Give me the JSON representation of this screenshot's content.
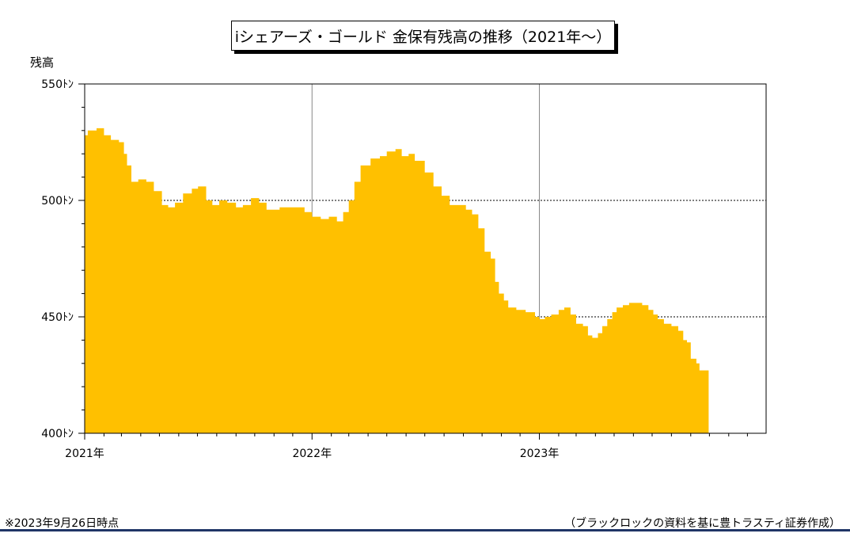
{
  "chart_data": {
    "type": "area",
    "title": "iシェアーズ・ゴールド 金保有残高の推移（2021年～）",
    "ylabel": "残高",
    "ylim": [
      400,
      550
    ],
    "yticks": [
      {
        "value": 550,
        "label": "550ﾄﾝ"
      },
      {
        "value": 500,
        "label": "500ﾄﾝ"
      },
      {
        "value": 450,
        "label": "450ﾄﾝ"
      },
      {
        "value": 400,
        "label": "400ﾄﾝ"
      }
    ],
    "xlim": [
      "2021-01-01",
      "2023-12-31"
    ],
    "xticks": [
      {
        "value": "2021-01-01",
        "label": "2021年"
      },
      {
        "value": "2022-01-01",
        "label": "2022年"
      },
      {
        "value": "2023-01-01",
        "label": "2023年"
      }
    ],
    "grid": {
      "horizontal": [
        450,
        500
      ],
      "vertical": [
        "2022-01-01",
        "2023-01-01"
      ]
    },
    "color": "#ffc000",
    "series": [
      {
        "points": [
          [
            "2021-01-01",
            528
          ],
          [
            "2021-01-06",
            530
          ],
          [
            "2021-01-20",
            531
          ],
          [
            "2021-02-01",
            528
          ],
          [
            "2021-02-12",
            526
          ],
          [
            "2021-02-25",
            525
          ],
          [
            "2021-03-05",
            520
          ],
          [
            "2021-03-10",
            515
          ],
          [
            "2021-03-17",
            508
          ],
          [
            "2021-03-28",
            509
          ],
          [
            "2021-04-10",
            508
          ],
          [
            "2021-04-22",
            504
          ],
          [
            "2021-05-05",
            498
          ],
          [
            "2021-05-15",
            497
          ],
          [
            "2021-05-26",
            499
          ],
          [
            "2021-06-08",
            503
          ],
          [
            "2021-06-22",
            505
          ],
          [
            "2021-07-02",
            506
          ],
          [
            "2021-07-15",
            500
          ],
          [
            "2021-07-25",
            498
          ],
          [
            "2021-08-05",
            500
          ],
          [
            "2021-08-18",
            499
          ],
          [
            "2021-09-01",
            497
          ],
          [
            "2021-09-12",
            498
          ],
          [
            "2021-09-25",
            501
          ],
          [
            "2021-10-08",
            499
          ],
          [
            "2021-10-20",
            496
          ],
          [
            "2021-11-03",
            496
          ],
          [
            "2021-11-10",
            497
          ],
          [
            "2021-11-25",
            497
          ],
          [
            "2021-12-10",
            497
          ],
          [
            "2021-12-20",
            495
          ],
          [
            "2022-01-01",
            493
          ],
          [
            "2022-01-15",
            492
          ],
          [
            "2022-01-28",
            493
          ],
          [
            "2022-02-10",
            491
          ],
          [
            "2022-02-20",
            495
          ],
          [
            "2022-03-01",
            500
          ],
          [
            "2022-03-10",
            508
          ],
          [
            "2022-03-20",
            515
          ],
          [
            "2022-04-05",
            518
          ],
          [
            "2022-04-20",
            519
          ],
          [
            "2022-05-01",
            521
          ],
          [
            "2022-05-15",
            522
          ],
          [
            "2022-05-25",
            519
          ],
          [
            "2022-06-05",
            520
          ],
          [
            "2022-06-15",
            517
          ],
          [
            "2022-07-01",
            512
          ],
          [
            "2022-07-15",
            506
          ],
          [
            "2022-07-28",
            502
          ],
          [
            "2022-08-10",
            498
          ],
          [
            "2022-08-25",
            498
          ],
          [
            "2022-09-05",
            496
          ],
          [
            "2022-09-15",
            494
          ],
          [
            "2022-09-25",
            488
          ],
          [
            "2022-10-05",
            478
          ],
          [
            "2022-10-15",
            475
          ],
          [
            "2022-10-22",
            465
          ],
          [
            "2022-10-28",
            460
          ],
          [
            "2022-11-05",
            457
          ],
          [
            "2022-11-12",
            454
          ],
          [
            "2022-11-25",
            453
          ],
          [
            "2022-12-10",
            452
          ],
          [
            "2022-12-25",
            450
          ],
          [
            "2023-01-01",
            449
          ],
          [
            "2023-01-10",
            450
          ],
          [
            "2023-01-20",
            451
          ],
          [
            "2023-02-01",
            453
          ],
          [
            "2023-02-10",
            454
          ],
          [
            "2023-02-20",
            451
          ],
          [
            "2023-03-01",
            447
          ],
          [
            "2023-03-12",
            446
          ],
          [
            "2023-03-20",
            442
          ],
          [
            "2023-03-27",
            441
          ],
          [
            "2023-04-05",
            443
          ],
          [
            "2023-04-12",
            446
          ],
          [
            "2023-04-20",
            449
          ],
          [
            "2023-04-28",
            452
          ],
          [
            "2023-05-05",
            454
          ],
          [
            "2023-05-15",
            455
          ],
          [
            "2023-05-25",
            456
          ],
          [
            "2023-06-05",
            456
          ],
          [
            "2023-06-15",
            455
          ],
          [
            "2023-06-25",
            453
          ],
          [
            "2023-07-03",
            451
          ],
          [
            "2023-07-10",
            449
          ],
          [
            "2023-07-20",
            447
          ],
          [
            "2023-08-01",
            446
          ],
          [
            "2023-08-12",
            444
          ],
          [
            "2023-08-20",
            440
          ],
          [
            "2023-08-26",
            439
          ],
          [
            "2023-09-01",
            432
          ],
          [
            "2023-09-10",
            430
          ],
          [
            "2023-09-15",
            427
          ],
          [
            "2023-09-26",
            427
          ]
        ]
      }
    ]
  },
  "footer": {
    "note": "※2023年9月26日時点",
    "source": "（ブラックロックの資料を基に豊トラスティ証券作成）"
  }
}
